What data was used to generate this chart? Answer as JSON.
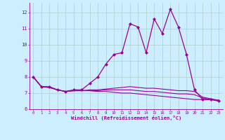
{
  "xlabel": "Windchill (Refroidissement éolien,°C)",
  "bg_color": "#cceeff",
  "grid_color": "#b0cccc",
  "line_color": "#990099",
  "xlim": [
    -0.5,
    23.5
  ],
  "ylim": [
    6.0,
    12.6
  ],
  "yticks": [
    6,
    7,
    8,
    9,
    10,
    11,
    12
  ],
  "xticks": [
    0,
    1,
    2,
    3,
    4,
    5,
    6,
    7,
    8,
    9,
    10,
    11,
    12,
    13,
    14,
    15,
    16,
    17,
    18,
    19,
    20,
    21,
    22,
    23
  ],
  "line1_x": [
    0,
    1,
    2,
    3,
    4,
    5,
    6,
    7,
    8,
    9,
    10,
    11,
    12,
    13,
    14,
    15,
    16,
    17,
    18,
    19,
    20,
    21,
    22,
    23
  ],
  "line1_y": [
    8.0,
    7.4,
    7.4,
    7.2,
    7.1,
    7.2,
    7.2,
    7.6,
    8.0,
    8.8,
    9.4,
    9.5,
    11.3,
    11.1,
    9.5,
    11.6,
    10.7,
    12.2,
    11.1,
    9.4,
    7.2,
    6.6,
    6.6,
    6.5
  ],
  "line2_x": [
    0,
    1,
    2,
    3,
    4,
    5,
    6,
    7,
    8,
    9,
    10,
    11,
    12,
    13,
    14,
    15,
    16,
    17,
    18,
    19,
    20,
    21,
    22,
    23
  ],
  "line2_y": [
    8.0,
    7.4,
    7.35,
    7.2,
    7.1,
    7.15,
    7.15,
    7.15,
    7.1,
    7.1,
    7.05,
    7.0,
    7.0,
    6.95,
    6.9,
    6.85,
    6.8,
    6.75,
    6.7,
    6.65,
    6.6,
    6.6,
    6.6,
    6.55
  ],
  "line3_x": [
    0,
    1,
    2,
    3,
    4,
    5,
    6,
    7,
    8,
    9,
    10,
    11,
    12,
    13,
    14,
    15,
    16,
    17,
    18,
    19,
    20,
    21,
    22,
    23
  ],
  "line3_y": [
    8.0,
    7.4,
    7.35,
    7.2,
    7.1,
    7.15,
    7.15,
    7.15,
    7.15,
    7.2,
    7.2,
    7.2,
    7.2,
    7.15,
    7.1,
    7.1,
    7.05,
    7.0,
    6.95,
    6.95,
    6.9,
    6.7,
    6.6,
    6.55
  ],
  "line4_x": [
    0,
    1,
    2,
    3,
    4,
    5,
    6,
    7,
    8,
    9,
    10,
    11,
    12,
    13,
    14,
    15,
    16,
    17,
    18,
    19,
    20,
    21,
    22,
    23
  ],
  "line4_y": [
    8.0,
    7.4,
    7.35,
    7.2,
    7.1,
    7.15,
    7.15,
    7.2,
    7.2,
    7.25,
    7.3,
    7.35,
    7.4,
    7.35,
    7.3,
    7.3,
    7.25,
    7.2,
    7.15,
    7.15,
    7.1,
    6.75,
    6.65,
    6.55
  ]
}
